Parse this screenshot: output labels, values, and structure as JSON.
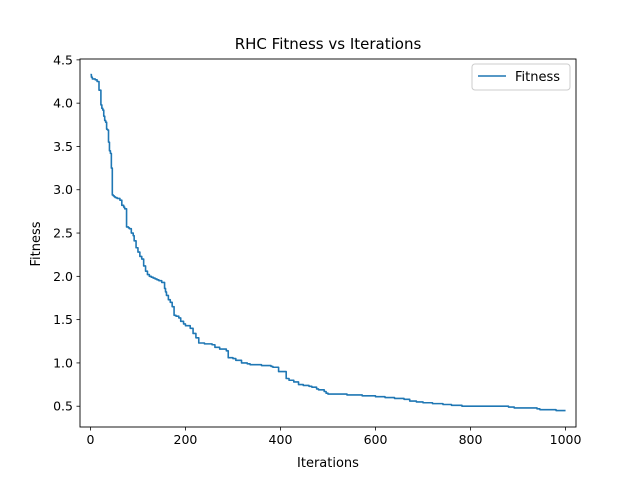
{
  "chart_data": {
    "type": "line",
    "title": "RHC Fitness vs Iterations",
    "xlabel": "Iterations",
    "ylabel": "Fitness",
    "xlim": [
      -22,
      1022
    ],
    "ylim": [
      0.26,
      4.51
    ],
    "x_ticks": [
      0,
      200,
      400,
      600,
      800,
      1000
    ],
    "y_ticks": [
      0.5,
      1.0,
      1.5,
      2.0,
      2.5,
      3.0,
      3.5,
      4.0,
      4.5
    ],
    "grid": false,
    "legend_position": "top-right",
    "line_color": "#1f77b4",
    "series": [
      {
        "name": "Fitness",
        "x": [
          0,
          2,
          4,
          10,
          14,
          18,
          22,
          24,
          26,
          28,
          30,
          32,
          34,
          36,
          38,
          40,
          42,
          44,
          46,
          48,
          50,
          52,
          56,
          62,
          66,
          70,
          72,
          76,
          80,
          82,
          86,
          90,
          92,
          96,
          100,
          104,
          108,
          112,
          116,
          120,
          124,
          128,
          132,
          136,
          140,
          144,
          150,
          156,
          158,
          160,
          164,
          168,
          172,
          176,
          180,
          186,
          190,
          196,
          200,
          210,
          216,
          222,
          228,
          240,
          256,
          262,
          272,
          286,
          290,
          300,
          306,
          318,
          330,
          336,
          348,
          360,
          372,
          380,
          384,
          396,
          400,
          412,
          418,
          428,
          438,
          448,
          460,
          466,
          476,
          480,
          492,
          496,
          500,
          510,
          520,
          540,
          560,
          572,
          586,
          600,
          620,
          640,
          660,
          672,
          686,
          700,
          720,
          742,
          760,
          782,
          800,
          840,
          880,
          892,
          920,
          940,
          946,
          980,
          1000
        ],
        "y": [
          4.33,
          4.3,
          4.28,
          4.27,
          4.25,
          4.15,
          3.98,
          3.94,
          3.92,
          3.85,
          3.8,
          3.78,
          3.7,
          3.69,
          3.55,
          3.45,
          3.42,
          3.25,
          2.94,
          2.93,
          2.92,
          2.91,
          2.9,
          2.88,
          2.82,
          2.8,
          2.78,
          2.57,
          2.56,
          2.55,
          2.5,
          2.47,
          2.41,
          2.33,
          2.28,
          2.23,
          2.2,
          2.12,
          2.06,
          2.02,
          2.0,
          1.99,
          1.98,
          1.97,
          1.96,
          1.95,
          1.93,
          1.86,
          1.82,
          1.78,
          1.73,
          1.7,
          1.65,
          1.55,
          1.54,
          1.52,
          1.48,
          1.45,
          1.43,
          1.4,
          1.34,
          1.29,
          1.23,
          1.22,
          1.21,
          1.18,
          1.16,
          1.14,
          1.06,
          1.05,
          1.03,
          1.0,
          0.99,
          0.98,
          0.98,
          0.97,
          0.97,
          0.96,
          0.95,
          0.9,
          0.9,
          0.82,
          0.8,
          0.78,
          0.75,
          0.74,
          0.73,
          0.72,
          0.7,
          0.69,
          0.67,
          0.65,
          0.64,
          0.64,
          0.64,
          0.63,
          0.63,
          0.62,
          0.62,
          0.61,
          0.6,
          0.59,
          0.58,
          0.56,
          0.55,
          0.54,
          0.53,
          0.52,
          0.51,
          0.5,
          0.5,
          0.5,
          0.49,
          0.48,
          0.48,
          0.47,
          0.46,
          0.45,
          0.45
        ]
      }
    ]
  }
}
